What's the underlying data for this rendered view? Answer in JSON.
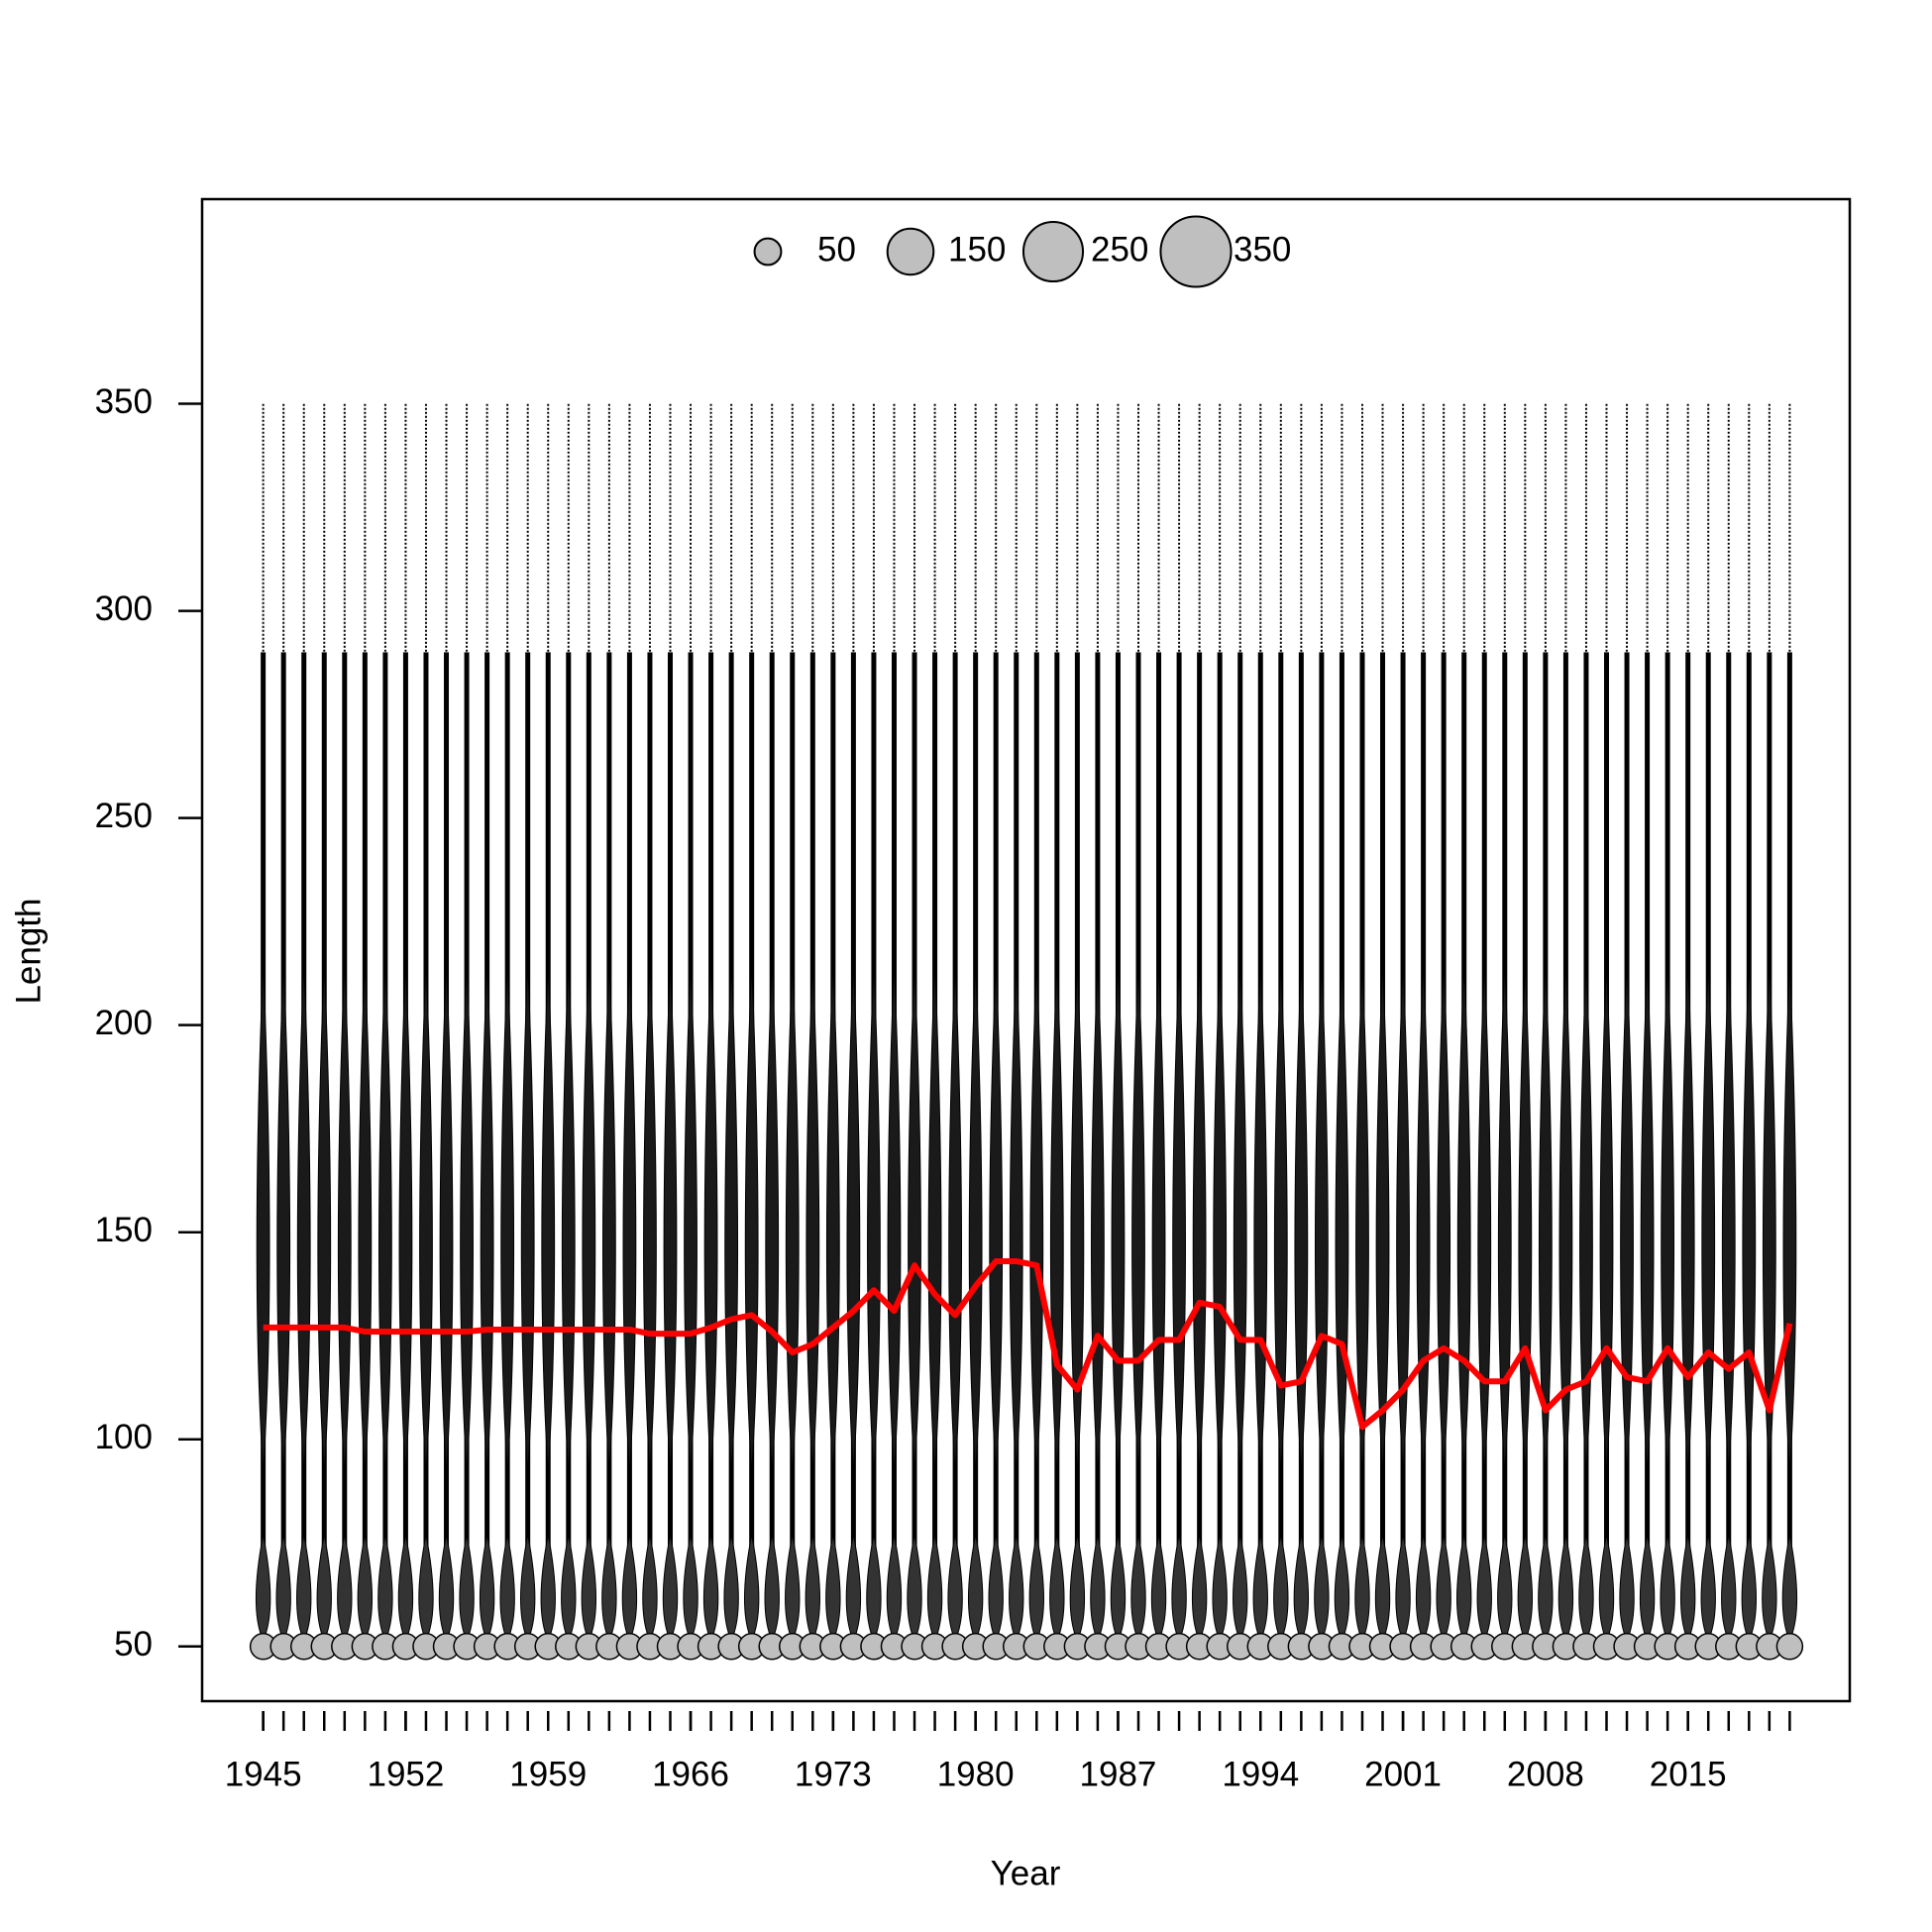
{
  "chart_data": {
    "type": "line",
    "x_label": "Year",
    "y_label": "Length",
    "x": [
      1945,
      1946,
      1947,
      1948,
      1949,
      1950,
      1951,
      1952,
      1953,
      1954,
      1955,
      1956,
      1957,
      1958,
      1959,
      1960,
      1961,
      1962,
      1963,
      1964,
      1965,
      1966,
      1967,
      1968,
      1969,
      1970,
      1971,
      1972,
      1973,
      1974,
      1975,
      1976,
      1977,
      1978,
      1979,
      1980,
      1981,
      1982,
      1983,
      1984,
      1985,
      1986,
      1987,
      1988,
      1989,
      1990,
      1991,
      1992,
      1993,
      1994,
      1995,
      1996,
      1997,
      1998,
      1999,
      2000,
      2001,
      2002,
      2003,
      2004,
      2005,
      2006,
      2007,
      2008,
      2009,
      2010,
      2011,
      2012,
      2013,
      2014,
      2015,
      2016,
      2017,
      2018,
      2019,
      2020
    ],
    "series": [
      {
        "color": "#ff0000",
        "values": [
          127,
          127,
          127,
          127,
          127,
          126,
          126,
          126,
          126,
          126,
          126,
          126.5,
          126.5,
          126.5,
          126.5,
          126.5,
          126.5,
          126.5,
          126.5,
          125.5,
          125.5,
          125.5,
          127,
          129,
          130,
          126,
          121,
          123,
          127,
          131,
          136,
          131,
          142,
          135,
          130,
          137,
          143,
          143,
          142,
          118,
          112,
          125,
          119,
          119,
          124,
          124,
          133,
          132,
          124,
          124,
          113,
          114,
          125,
          123,
          103,
          107,
          112,
          119,
          122,
          119,
          114,
          114,
          122,
          107,
          112,
          114,
          122,
          115,
          114,
          122,
          115,
          121,
          117,
          121,
          107,
          128
        ]
      }
    ],
    "xlim": [
      1942,
      2022.95
    ],
    "xticks": [
      1945,
      1952,
      1959,
      1966,
      1973,
      1980,
      1987,
      1994,
      2001,
      2008,
      2015
    ],
    "ylim": [
      36.8,
      399.4
    ],
    "yticks": [
      50,
      100,
      150,
      200,
      250,
      300,
      350
    ],
    "legend": {
      "position": "top",
      "sizes": [
        50,
        150,
        250,
        350
      ]
    }
  }
}
